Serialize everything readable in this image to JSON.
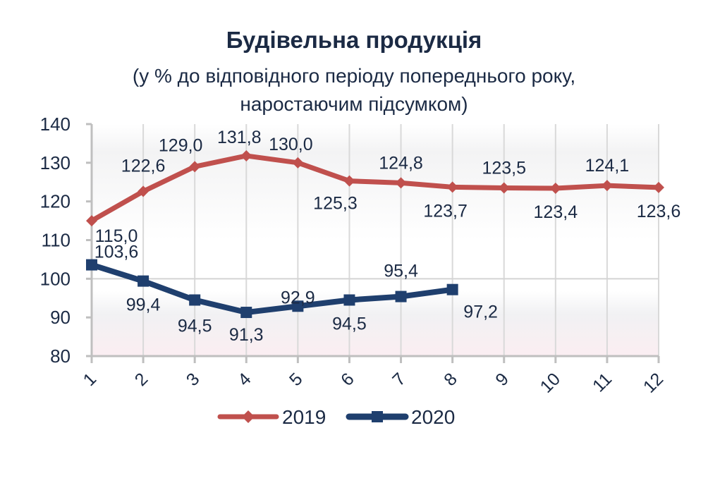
{
  "chart_data": {
    "type": "line",
    "title": "Будівельна продукція",
    "subtitle_line1": "(у % до відповідного періоду попереднього року,",
    "subtitle_line2": "наростаючим підсумком)",
    "xlabel": "",
    "ylabel": "",
    "categories": [
      "1",
      "2",
      "3",
      "4",
      "5",
      "6",
      "7",
      "8",
      "9",
      "10",
      "11",
      "12"
    ],
    "ylim": [
      80,
      140
    ],
    "yticks": [
      80,
      90,
      100,
      110,
      120,
      130,
      140
    ],
    "grid": {
      "vertical": true,
      "horizontal_at": [
        100
      ]
    },
    "legend_position": "bottom",
    "series": [
      {
        "name": "2019",
        "color": "#c0504d",
        "marker": "diamond",
        "values": [
          115.0,
          122.6,
          129.0,
          131.8,
          130.0,
          125.3,
          124.8,
          123.7,
          123.5,
          123.4,
          124.1,
          123.6
        ],
        "labels": [
          "115,0",
          "122,6",
          "129,0",
          "131,8",
          "130,0",
          "125,3",
          "124,8",
          "123,7",
          "123,5",
          "123,4",
          "124,1",
          "123,6"
        ]
      },
      {
        "name": "2020",
        "color": "#1f3f6e",
        "marker": "square",
        "values": [
          103.6,
          99.4,
          94.5,
          91.3,
          92.9,
          94.5,
          95.4,
          97.2
        ],
        "labels": [
          "103,6",
          "99,4",
          "94,5",
          "91,3",
          "92,9",
          "94,5",
          "95,4",
          "97,2"
        ]
      }
    ]
  },
  "legend": {
    "items": [
      {
        "label": "2019"
      },
      {
        "label": "2020"
      }
    ]
  }
}
